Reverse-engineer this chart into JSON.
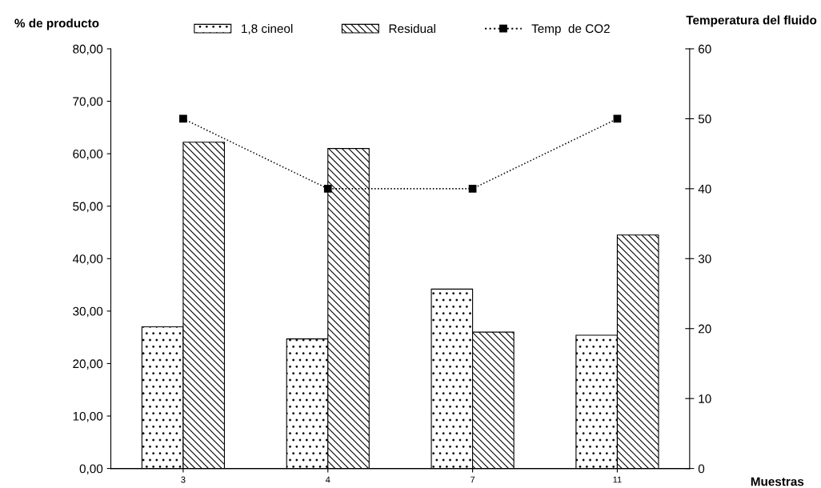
{
  "chart_data": {
    "type": "bar",
    "xlabel": "Muestras",
    "ylabel": "% de producto",
    "y2label": "Temperatura del fluido",
    "categories": [
      "3",
      "4",
      "7",
      "11"
    ],
    "series": [
      {
        "name": "1,8 cineol",
        "color": "#000000",
        "values": [
          27.0,
          24.7,
          34.2,
          25.4
        ]
      },
      {
        "name": "Residual",
        "color": "#000000",
        "values": [
          62.2,
          61.0,
          26.0,
          44.5
        ]
      },
      {
        "name": "Temp  de CO2",
        "type": "line",
        "axis": "y2",
        "color": "#000000",
        "marker": "square",
        "line_style": "dotted",
        "values": [
          50,
          40,
          40,
          50
        ]
      }
    ],
    "ylim": [
      0,
      80
    ],
    "yticks": [
      {
        "value": 0,
        "label": "0,00"
      },
      {
        "value": 10,
        "label": "10,00"
      },
      {
        "value": 20,
        "label": "20,00"
      },
      {
        "value": 30,
        "label": "30,00"
      },
      {
        "value": 40,
        "label": "40,00"
      },
      {
        "value": 50,
        "label": "50,00"
      },
      {
        "value": 60,
        "label": "60,00"
      },
      {
        "value": 70,
        "label": "70,00"
      },
      {
        "value": 80,
        "label": "80,00"
      }
    ],
    "y2lim": [
      0,
      60
    ],
    "y2ticks": [
      0,
      10,
      20,
      30,
      40,
      50,
      60
    ],
    "legend": "top",
    "grid": false
  }
}
